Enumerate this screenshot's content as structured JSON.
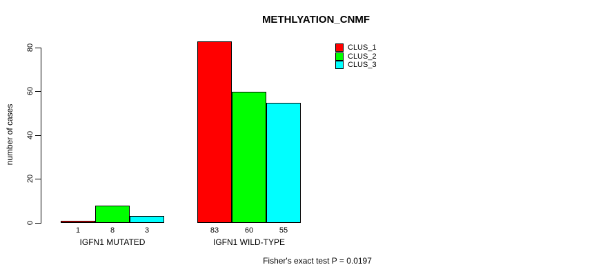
{
  "chart_data": {
    "type": "bar",
    "title": "METHLYATION_CNMF",
    "xlabel": "",
    "ylabel": "number of cases",
    "categories": [
      "IGFN1 MUTATED",
      "IGFN1 WILD-TYPE"
    ],
    "series": [
      {
        "name": "CLUS_1",
        "color": "#FF0000",
        "values": [
          1,
          83
        ]
      },
      {
        "name": "CLUS_2",
        "color": "#00FF00",
        "values": [
          8,
          60
        ]
      },
      {
        "name": "CLUS_3",
        "color": "#00FFFF",
        "values": [
          3,
          55
        ]
      }
    ],
    "yticks": [
      0,
      20,
      40,
      60,
      80
    ],
    "ylim": [
      0,
      83
    ],
    "grid": false,
    "legend_position": "top-right",
    "show_bar_value_labels": true,
    "annotation": "Fisher's exact test P = 0.0197",
    "colors": {
      "axis": "#000000",
      "text": "#000000",
      "background": "#FFFFFF"
    }
  }
}
